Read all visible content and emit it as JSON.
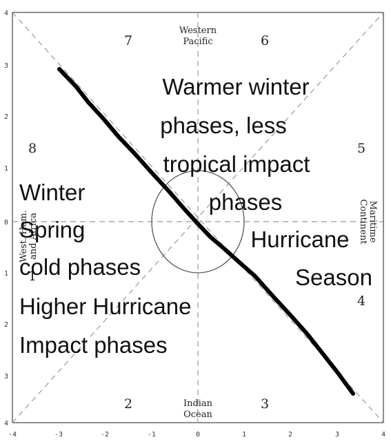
{
  "axes": {
    "x_ticks": [
      "-4",
      "-3",
      "-2",
      "-1",
      "0",
      "1",
      "2",
      "3",
      "4"
    ],
    "y_ticks": [
      "4",
      "3",
      "2",
      "1",
      "0",
      "1",
      "2",
      "3",
      "4"
    ]
  },
  "regions": {
    "top": [
      "Western",
      "Pacific"
    ],
    "bottom": [
      "Indian",
      "Ocean"
    ],
    "right": [
      "Maritime",
      "Continent"
    ],
    "left": [
      "West. Hem.",
      "and Africa"
    ]
  },
  "phases": [
    "1",
    "2",
    "3",
    "4",
    "5",
    "6",
    "7",
    "8"
  ],
  "annotations": {
    "warm": [
      "Warmer winter",
      "phases, less",
      "tropical impact",
      "phases"
    ],
    "season": [
      "Hurricane",
      "Season"
    ],
    "cold": [
      "Winter",
      "Spring",
      "cold phases",
      "Higher Hurricane",
      "Impact phases"
    ]
  },
  "colors": {
    "frame": "#444444",
    "dashed": "#999999",
    "stroke": "#000000"
  }
}
